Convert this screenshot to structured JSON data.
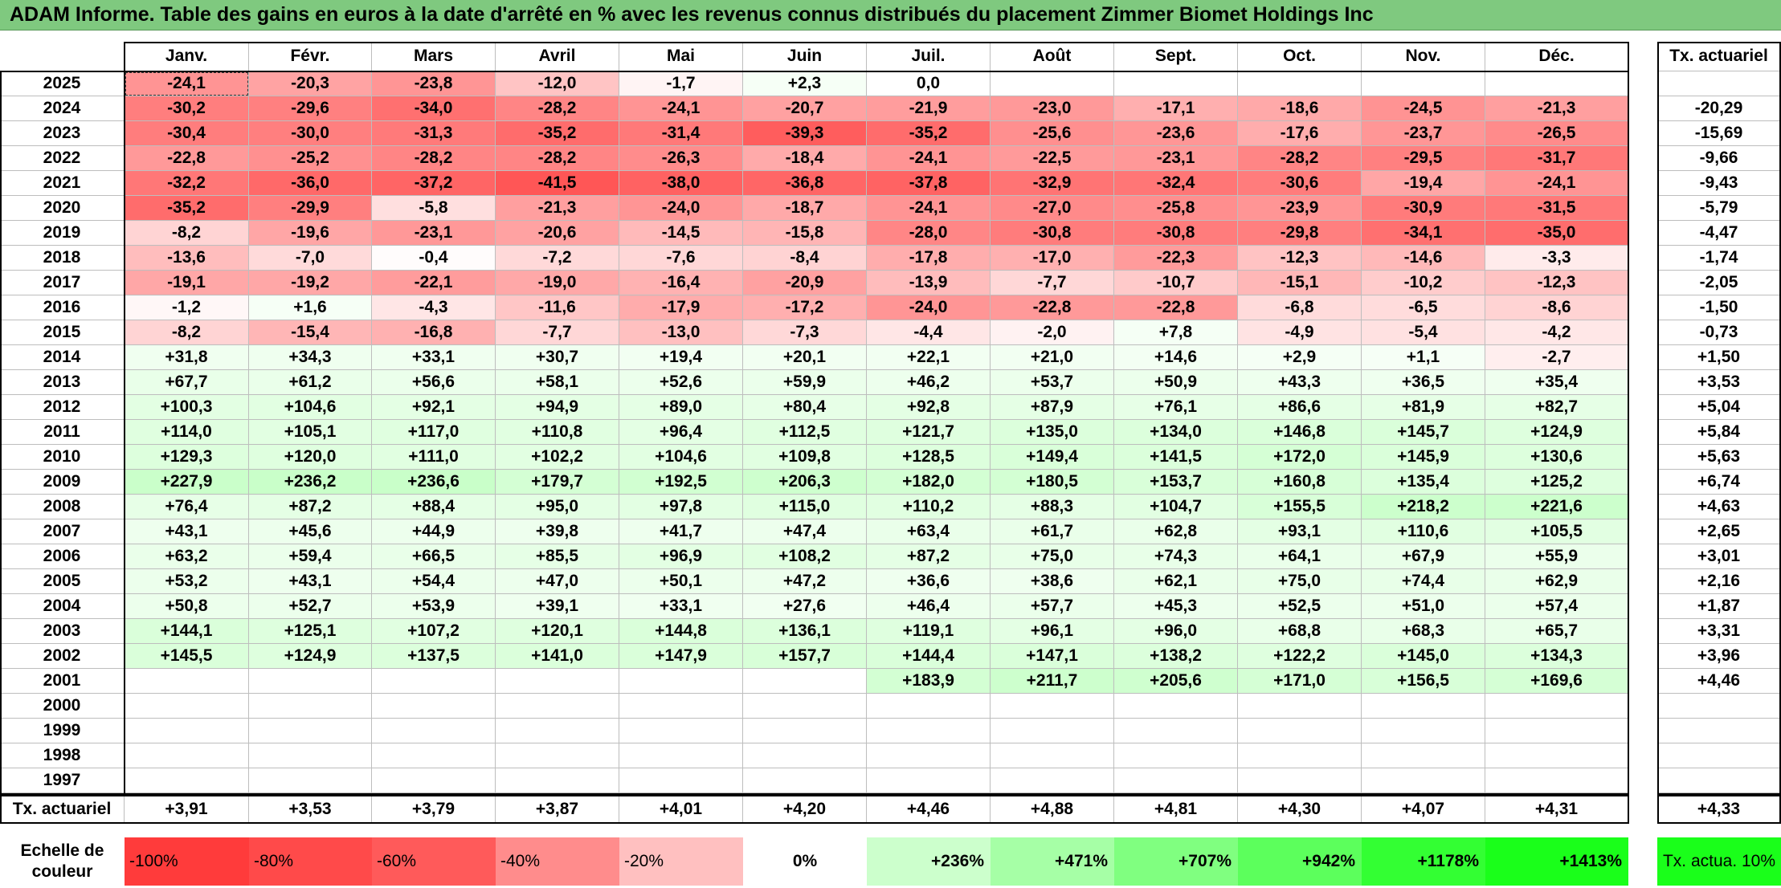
{
  "title": "ADAM Informe. Table des gains en euros à la date d'arrêté en % avec les revenus connus distribués du placement Zimmer Biomet Holdings Inc",
  "months": [
    "Janv.",
    "Févr.",
    "Mars",
    "Avril",
    "Mai",
    "Juin",
    "Juil.",
    "Août",
    "Sept.",
    "Oct.",
    "Nov.",
    "Déc."
  ],
  "tx_header": "Tx. actuariel",
  "rows": [
    {
      "year": "2025",
      "values": [
        "-24,1",
        "-20,3",
        "-23,8",
        "-12,0",
        "-1,7",
        "+2,3",
        "0,0",
        "",
        "",
        "",
        "",
        ""
      ],
      "tx": ""
    },
    {
      "year": "2024",
      "values": [
        "-30,2",
        "-29,6",
        "-34,0",
        "-28,2",
        "-24,1",
        "-20,7",
        "-21,9",
        "-23,0",
        "-17,1",
        "-18,6",
        "-24,5",
        "-21,3"
      ],
      "tx": "-20,29"
    },
    {
      "year": "2023",
      "values": [
        "-30,4",
        "-30,0",
        "-31,3",
        "-35,2",
        "-31,4",
        "-39,3",
        "-35,2",
        "-25,6",
        "-23,6",
        "-17,6",
        "-23,7",
        "-26,5"
      ],
      "tx": "-15,69"
    },
    {
      "year": "2022",
      "values": [
        "-22,8",
        "-25,2",
        "-28,2",
        "-28,2",
        "-26,3",
        "-18,4",
        "-24,1",
        "-22,5",
        "-23,1",
        "-28,2",
        "-29,5",
        "-31,7"
      ],
      "tx": "-9,66"
    },
    {
      "year": "2021",
      "values": [
        "-32,2",
        "-36,0",
        "-37,2",
        "-41,5",
        "-38,0",
        "-36,8",
        "-37,8",
        "-32,9",
        "-32,4",
        "-30,6",
        "-19,4",
        "-24,1"
      ],
      "tx": "-9,43"
    },
    {
      "year": "2020",
      "values": [
        "-35,2",
        "-29,9",
        "-5,8",
        "-21,3",
        "-24,0",
        "-18,7",
        "-24,1",
        "-27,0",
        "-25,8",
        "-23,9",
        "-30,9",
        "-31,5"
      ],
      "tx": "-5,79"
    },
    {
      "year": "2019",
      "values": [
        "-8,2",
        "-19,6",
        "-23,1",
        "-20,6",
        "-14,5",
        "-15,8",
        "-28,0",
        "-30,8",
        "-30,8",
        "-29,8",
        "-34,1",
        "-35,0"
      ],
      "tx": "-4,47"
    },
    {
      "year": "2018",
      "values": [
        "-13,6",
        "-7,0",
        "-0,4",
        "-7,2",
        "-7,6",
        "-8,4",
        "-17,8",
        "-17,0",
        "-22,3",
        "-12,3",
        "-14,6",
        "-3,3"
      ],
      "tx": "-1,74"
    },
    {
      "year": "2017",
      "values": [
        "-19,1",
        "-19,2",
        "-22,1",
        "-19,0",
        "-16,4",
        "-20,9",
        "-13,9",
        "-7,7",
        "-10,7",
        "-15,1",
        "-10,2",
        "-12,3"
      ],
      "tx": "-2,05"
    },
    {
      "year": "2016",
      "values": [
        "-1,2",
        "+1,6",
        "-4,3",
        "-11,6",
        "-17,9",
        "-17,2",
        "-24,0",
        "-22,8",
        "-22,8",
        "-6,8",
        "-6,5",
        "-8,6"
      ],
      "tx": "-1,50"
    },
    {
      "year": "2015",
      "values": [
        "-8,2",
        "-15,4",
        "-16,8",
        "-7,7",
        "-13,0",
        "-7,3",
        "-4,4",
        "-2,0",
        "+7,8",
        "-4,9",
        "-5,4",
        "-4,2"
      ],
      "tx": "-0,73"
    },
    {
      "year": "2014",
      "values": [
        "+31,8",
        "+34,3",
        "+33,1",
        "+30,7",
        "+19,4",
        "+20,1",
        "+22,1",
        "+21,0",
        "+14,6",
        "+2,9",
        "+1,1",
        "-2,7"
      ],
      "tx": "+1,50"
    },
    {
      "year": "2013",
      "values": [
        "+67,7",
        "+61,2",
        "+56,6",
        "+58,1",
        "+52,6",
        "+59,9",
        "+46,2",
        "+53,7",
        "+50,9",
        "+43,3",
        "+36,5",
        "+35,4"
      ],
      "tx": "+3,53"
    },
    {
      "year": "2012",
      "values": [
        "+100,3",
        "+104,6",
        "+92,1",
        "+94,9",
        "+89,0",
        "+80,4",
        "+92,8",
        "+87,9",
        "+76,1",
        "+86,6",
        "+81,9",
        "+82,7"
      ],
      "tx": "+5,04"
    },
    {
      "year": "2011",
      "values": [
        "+114,0",
        "+105,1",
        "+117,0",
        "+110,8",
        "+96,4",
        "+112,5",
        "+121,7",
        "+135,0",
        "+134,0",
        "+146,8",
        "+145,7",
        "+124,9"
      ],
      "tx": "+5,84"
    },
    {
      "year": "2010",
      "values": [
        "+129,3",
        "+120,0",
        "+111,0",
        "+102,2",
        "+104,6",
        "+109,8",
        "+128,5",
        "+149,4",
        "+141,5",
        "+172,0",
        "+145,9",
        "+130,6"
      ],
      "tx": "+5,63"
    },
    {
      "year": "2009",
      "values": [
        "+227,9",
        "+236,2",
        "+236,6",
        "+179,7",
        "+192,5",
        "+206,3",
        "+182,0",
        "+180,5",
        "+153,7",
        "+160,8",
        "+135,4",
        "+125,2"
      ],
      "tx": "+6,74"
    },
    {
      "year": "2008",
      "values": [
        "+76,4",
        "+87,2",
        "+88,4",
        "+95,0",
        "+97,8",
        "+115,0",
        "+110,2",
        "+88,3",
        "+104,7",
        "+155,5",
        "+218,2",
        "+221,6"
      ],
      "tx": "+4,63"
    },
    {
      "year": "2007",
      "values": [
        "+43,1",
        "+45,6",
        "+44,9",
        "+39,8",
        "+41,7",
        "+47,4",
        "+63,4",
        "+61,7",
        "+62,8",
        "+93,1",
        "+110,6",
        "+105,5"
      ],
      "tx": "+2,65"
    },
    {
      "year": "2006",
      "values": [
        "+63,2",
        "+59,4",
        "+66,5",
        "+85,5",
        "+96,9",
        "+108,2",
        "+87,2",
        "+75,0",
        "+74,3",
        "+64,1",
        "+67,9",
        "+55,9"
      ],
      "tx": "+3,01"
    },
    {
      "year": "2005",
      "values": [
        "+53,2",
        "+43,1",
        "+54,4",
        "+47,0",
        "+50,1",
        "+47,2",
        "+36,6",
        "+38,6",
        "+62,1",
        "+75,0",
        "+74,4",
        "+62,9"
      ],
      "tx": "+2,16"
    },
    {
      "year": "2004",
      "values": [
        "+50,8",
        "+52,7",
        "+53,9",
        "+39,1",
        "+33,1",
        "+27,6",
        "+46,4",
        "+57,7",
        "+45,3",
        "+52,5",
        "+51,0",
        "+57,4"
      ],
      "tx": "+1,87"
    },
    {
      "year": "2003",
      "values": [
        "+144,1",
        "+125,1",
        "+107,2",
        "+120,1",
        "+144,8",
        "+136,1",
        "+119,1",
        "+96,1",
        "+96,0",
        "+68,8",
        "+68,3",
        "+65,7"
      ],
      "tx": "+3,31"
    },
    {
      "year": "2002",
      "values": [
        "+145,5",
        "+124,9",
        "+137,5",
        "+141,0",
        "+147,9",
        "+157,7",
        "+144,4",
        "+147,1",
        "+138,2",
        "+122,2",
        "+145,0",
        "+134,3"
      ],
      "tx": "+3,96"
    },
    {
      "year": "2001",
      "values": [
        "",
        "",
        "",
        "",
        "",
        "",
        "+183,9",
        "+211,7",
        "+205,6",
        "+171,0",
        "+156,5",
        "+169,6"
      ],
      "tx": "+4,46"
    },
    {
      "year": "2000",
      "values": [
        "",
        "",
        "",
        "",
        "",
        "",
        "",
        "",
        "",
        "",
        "",
        ""
      ],
      "tx": ""
    },
    {
      "year": "1999",
      "values": [
        "",
        "",
        "",
        "",
        "",
        "",
        "",
        "",
        "",
        "",
        "",
        ""
      ],
      "tx": ""
    },
    {
      "year": "1998",
      "values": [
        "",
        "",
        "",
        "",
        "",
        "",
        "",
        "",
        "",
        "",
        "",
        ""
      ],
      "tx": ""
    },
    {
      "year": "1997",
      "values": [
        "",
        "",
        "",
        "",
        "",
        "",
        "",
        "",
        "",
        "",
        "",
        ""
      ],
      "tx": ""
    }
  ],
  "tx_row": {
    "label": "Tx. actuariel",
    "values": [
      "+3,91",
      "+3,53",
      "+3,79",
      "+3,87",
      "+4,01",
      "+4,20",
      "+4,46",
      "+4,88",
      "+4,81",
      "+4,30",
      "+4,07",
      "+4,31"
    ],
    "total": "+4,33"
  },
  "legend": {
    "label": "Echelle de couleur",
    "items": [
      {
        "text": "-100%",
        "color": "#ff3b3b"
      },
      {
        "text": "-80%",
        "color": "#ff4a4a"
      },
      {
        "text": "-60%",
        "color": "#ff5a5a"
      },
      {
        "text": "-40%",
        "color": "#ff8c8c"
      },
      {
        "text": "-20%",
        "color": "#ffc0c0"
      },
      {
        "text": "0%",
        "color": "#ffffff"
      },
      {
        "text": "+236%",
        "color": "#ccffcc"
      },
      {
        "text": "+471%",
        "color": "#a6ffa6"
      },
      {
        "text": "+707%",
        "color": "#80ff80"
      },
      {
        "text": "+942%",
        "color": "#5cff5c"
      },
      {
        "text": "+1178%",
        "color": "#33ff33"
      },
      {
        "text": "+1413%",
        "color": "#1aff1a"
      }
    ],
    "tx_label": "Tx. actua. 10%",
    "tx_color": "#1aff1a"
  }
}
